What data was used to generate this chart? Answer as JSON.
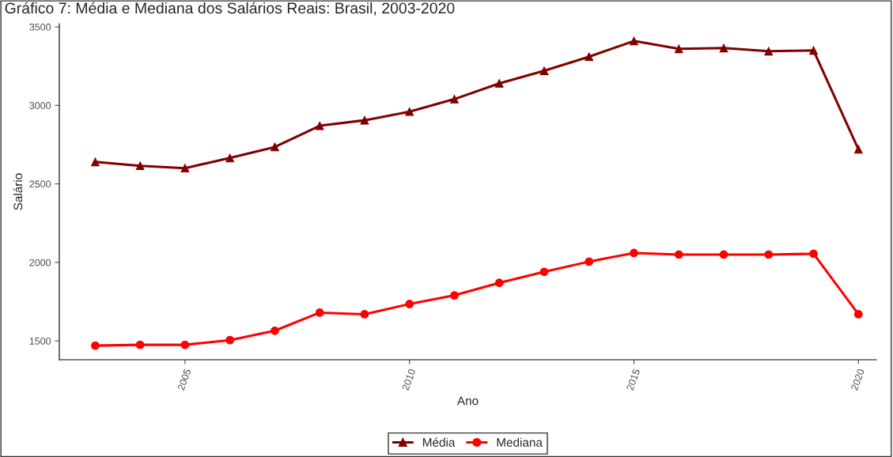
{
  "chart_data": {
    "type": "line",
    "title": "Gráfico 7: Média e Mediana dos Salários Reais: Brasil, 2003-2020",
    "xlabel": "Ano",
    "ylabel": "Salário",
    "x": [
      2003,
      2004,
      2005,
      2006,
      2007,
      2008,
      2009,
      2010,
      2011,
      2012,
      2013,
      2014,
      2015,
      2016,
      2017,
      2018,
      2019,
      2020
    ],
    "series": [
      {
        "name": "Média",
        "color": "#800000",
        "marker": "triangle",
        "values": [
          2640,
          2615,
          2600,
          2665,
          2735,
          2870,
          2905,
          2960,
          3040,
          3140,
          3220,
          3310,
          3410,
          3360,
          3365,
          3345,
          3350,
          2720
        ]
      },
      {
        "name": "Mediana",
        "color": "#ff0000",
        "marker": "circle",
        "values": [
          1470,
          1475,
          1475,
          1505,
          1565,
          1680,
          1670,
          1735,
          1790,
          1870,
          1940,
          2005,
          2060,
          2050,
          2050,
          2050,
          2055,
          1670
        ]
      }
    ],
    "xlim": [
      2002.2,
      2020.4
    ],
    "xticks": [
      2005,
      2010,
      2015,
      2020
    ],
    "ylim": [
      1380,
      3520
    ],
    "yticks": [
      1500,
      2000,
      2500,
      3000,
      3500
    ],
    "grid": false,
    "legend": "bottom",
    "line_style": "solid"
  }
}
